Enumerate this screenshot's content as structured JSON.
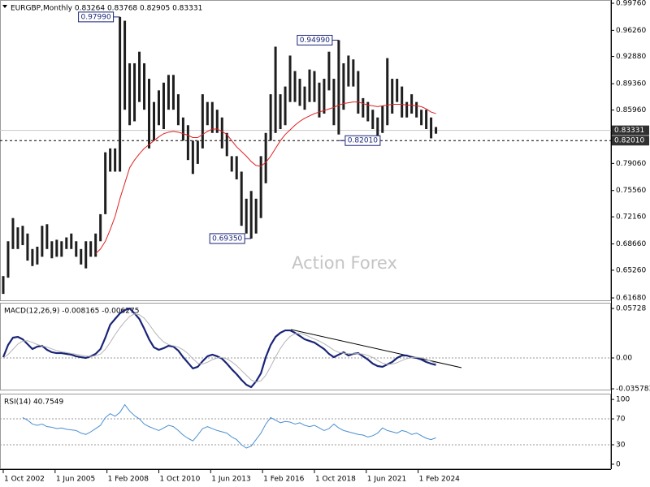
{
  "chart_data": [
    {
      "type": "ohlc",
      "title": "EURGBP,Monthly 0.83264 0.83768 0.82905 0.83331",
      "watermark": "Action Forex",
      "x": [
        "2002-10-01",
        "2003-01-01",
        "2003-04-01",
        "2003-07-01",
        "2003-10-01",
        "2004-01-01",
        "2004-04-01",
        "2004-07-01",
        "2004-10-01",
        "2005-01-01",
        "2005-04-01",
        "2005-07-01",
        "2005-10-01",
        "2006-01-01",
        "2006-04-01",
        "2006-07-01",
        "2006-10-01",
        "2007-01-01",
        "2007-04-01",
        "2007-07-01",
        "2007-10-01",
        "2008-01-01",
        "2008-04-01",
        "2008-07-01",
        "2008-10-01",
        "2009-01-01",
        "2009-04-01",
        "2009-07-01",
        "2009-10-01",
        "2010-01-01",
        "2010-04-01",
        "2010-07-01",
        "2010-10-01",
        "2011-01-01",
        "2011-04-01",
        "2011-07-01",
        "2011-10-01",
        "2012-01-01",
        "2012-04-01",
        "2012-07-01",
        "2012-10-01",
        "2013-01-01",
        "2013-04-01",
        "2013-07-01",
        "2013-10-01",
        "2014-01-01",
        "2014-04-01",
        "2014-07-01",
        "2014-10-01",
        "2015-01-01",
        "2015-04-01",
        "2015-07-01",
        "2015-10-01",
        "2016-01-01",
        "2016-04-01",
        "2016-07-01",
        "2016-10-01",
        "2017-01-01",
        "2017-04-01",
        "2017-07-01",
        "2017-10-01",
        "2018-01-01",
        "2018-04-01",
        "2018-07-01",
        "2018-10-01",
        "2019-01-01",
        "2019-04-01",
        "2019-07-01",
        "2019-10-01",
        "2020-01-01",
        "2020-04-01",
        "2020-07-01",
        "2020-10-01",
        "2021-01-01",
        "2021-04-01",
        "2021-07-01",
        "2021-10-01",
        "2022-01-01",
        "2022-04-01",
        "2022-07-01",
        "2022-10-01",
        "2023-01-01",
        "2023-04-01",
        "2023-07-01",
        "2023-10-01",
        "2024-01-01",
        "2024-04-01",
        "2024-07-01",
        "2024-10-01",
        "2025-01-01"
      ],
      "high": [
        0.645,
        0.69,
        0.72,
        0.708,
        0.71,
        0.7,
        0.68,
        0.683,
        0.71,
        0.712,
        0.69,
        0.692,
        0.69,
        0.695,
        0.7,
        0.69,
        0.68,
        0.69,
        0.69,
        0.7,
        0.725,
        0.805,
        0.81,
        0.81,
        0.9799,
        0.975,
        0.92,
        0.92,
        0.935,
        0.92,
        0.9,
        0.87,
        0.885,
        0.895,
        0.905,
        0.905,
        0.88,
        0.85,
        0.84,
        0.82,
        0.82,
        0.88,
        0.87,
        0.87,
        0.86,
        0.85,
        0.83,
        0.8,
        0.8,
        0.78,
        0.745,
        0.755,
        0.745,
        0.8,
        0.83,
        0.88,
        0.9415,
        0.88,
        0.89,
        0.93,
        0.91,
        0.9,
        0.89,
        0.912,
        0.91,
        0.895,
        0.9,
        0.935,
        0.9,
        0.9499,
        0.92,
        0.93,
        0.925,
        0.91,
        0.875,
        0.87,
        0.86,
        0.85,
        0.865,
        0.9267,
        0.9,
        0.9,
        0.89,
        0.87,
        0.88,
        0.87,
        0.86,
        0.86,
        0.85,
        0.83768
      ],
      "low": [
        0.622,
        0.643,
        0.68,
        0.68,
        0.685,
        0.665,
        0.658,
        0.66,
        0.67,
        0.68,
        0.668,
        0.67,
        0.67,
        0.68,
        0.68,
        0.67,
        0.66,
        0.655,
        0.67,
        0.67,
        0.69,
        0.725,
        0.78,
        0.78,
        0.78,
        0.86,
        0.84,
        0.845,
        0.87,
        0.86,
        0.81,
        0.82,
        0.84,
        0.835,
        0.86,
        0.86,
        0.84,
        0.82,
        0.795,
        0.777,
        0.79,
        0.81,
        0.84,
        0.83,
        0.83,
        0.81,
        0.8,
        0.78,
        0.77,
        0.71,
        0.7,
        0.6935,
        0.7,
        0.72,
        0.765,
        0.82,
        0.83,
        0.835,
        0.84,
        0.87,
        0.87,
        0.865,
        0.86,
        0.87,
        0.87,
        0.85,
        0.855,
        0.885,
        0.84,
        0.828,
        0.86,
        0.89,
        0.89,
        0.855,
        0.85,
        0.845,
        0.835,
        0.8201,
        0.83,
        0.84,
        0.855,
        0.87,
        0.85,
        0.85,
        0.855,
        0.85,
        0.84,
        0.835,
        0.823,
        0.82905
      ],
      "color": "#1e1e1e",
      "series": [
        {
          "color": "#e02020",
          "width": 1,
          "values": [
            null,
            null,
            null,
            null,
            null,
            null,
            null,
            null,
            null,
            null,
            null,
            null,
            null,
            null,
            null,
            null,
            null,
            null,
            null,
            0.674,
            0.68,
            0.69,
            0.705,
            0.722,
            0.745,
            0.765,
            0.785,
            0.795,
            0.803,
            0.81,
            0.815,
            0.82,
            0.825,
            0.829,
            0.831,
            0.832,
            0.831,
            0.829,
            0.827,
            0.824,
            0.824,
            0.828,
            0.832,
            0.835,
            0.835,
            0.832,
            0.828,
            0.82,
            0.812,
            0.806,
            0.8,
            0.793,
            0.788,
            0.787,
            0.792,
            0.8,
            0.81,
            0.82,
            0.828,
            0.834,
            0.84,
            0.845,
            0.849,
            0.852,
            0.855,
            0.857,
            0.859,
            0.861,
            0.863,
            0.866,
            0.868,
            0.869,
            0.87,
            0.87,
            0.868,
            0.866,
            0.865,
            0.864,
            0.865,
            0.866,
            0.867,
            0.867,
            0.867,
            0.866,
            0.866,
            0.865,
            0.864,
            0.861,
            0.857,
            0.855
          ]
        }
      ],
      "xlim": [
        "2002-08-01",
        "2034-01-01"
      ],
      "ylim": [
        0.6137,
        1.0018
      ],
      "yticks": [
        {
          "value": 0.9976,
          "label": "0.99760"
        },
        {
          "value": 0.9626,
          "label": "0.96260"
        },
        {
          "value": 0.9288,
          "label": "0.92880"
        },
        {
          "value": 0.8936,
          "label": "0.89360"
        },
        {
          "value": 0.8596,
          "label": "0.85960"
        },
        {
          "value": 0.7906,
          "label": "0.79060"
        },
        {
          "value": 0.7556,
          "label": "0.75560"
        },
        {
          "value": 0.7216,
          "label": "0.72160"
        },
        {
          "value": 0.6866,
          "label": "0.68660"
        },
        {
          "value": 0.6526,
          "label": "0.65260"
        },
        {
          "value": 0.6168,
          "label": "0.61680"
        }
      ],
      "hlines": [
        {
          "value": 0.83331,
          "color": "#c8c8c8",
          "style": "solid"
        },
        {
          "value": 0.8201,
          "label": "0.82010",
          "color": "#000000",
          "style": "dashed"
        }
      ],
      "annotations": [
        {
          "x": "2008-10-01",
          "value": 0.9799,
          "label": "0.97990",
          "side": "left"
        },
        {
          "x": "2020-01-01",
          "value": 0.9499,
          "label": "0.94990",
          "side": "left"
        },
        {
          "x": "2015-07-01",
          "value": 0.6935,
          "label": "0.69350",
          "side": "left"
        },
        {
          "x": "2020-01-01",
          "value": 0.8201,
          "label": "0.82010",
          "side": "right"
        }
      ]
    },
    {
      "type": "line",
      "title": "MACD(12,26,9) -0.008165 -0.006275",
      "series": [
        {
          "color": "#1a2478",
          "width": 2.2,
          "values": [
            0.0009,
            0.015,
            0.0235,
            0.0244,
            0.0216,
            0.016,
            0.0103,
            0.0131,
            0.0141,
            0.0094,
            0.0066,
            0.0056,
            0.0056,
            0.0047,
            0.0038,
            0.0019,
            0.0009,
            0,
            0.0019,
            0.0047,
            0.0103,
            0.0235,
            0.0385,
            0.0451,
            0.0516,
            0.0554,
            0.0573,
            0.0516,
            0.0451,
            0.0338,
            0.0216,
            0.0122,
            0.0094,
            0.0113,
            0.0141,
            0.0131,
            0.0085,
            0.0009,
            -0.0056,
            -0.0122,
            -0.0103,
            -0.0038,
            0.0019,
            0.0038,
            0.0019,
            -0.0009,
            -0.0066,
            -0.0131,
            -0.0188,
            -0.0254,
            -0.031,
            -0.0338,
            -0.0272,
            -0.0178,
            0.0009,
            0.015,
            0.0244,
            0.0291,
            0.0319,
            0.0319,
            0.0291,
            0.0254,
            0.0216,
            0.0197,
            0.0178,
            0.0141,
            0.0103,
            0.0047,
            0.0009,
            0.0038,
            0.0066,
            0.0028,
            0.0047,
            0.0056,
            0.0019,
            -0.0019,
            -0.0066,
            -0.0094,
            -0.0103,
            -0.0075,
            -0.0047,
            0,
            0.0028,
            0.0028,
            0.0009,
            0,
            -0.0019,
            -0.0047,
            -0.0066,
            -0.008165
          ]
        },
        {
          "color": "#b4b4b4",
          "width": 1,
          "values": [
            0,
            0.004,
            0.01,
            0.016,
            0.0195,
            0.02,
            0.018,
            0.0155,
            0.014,
            0.0125,
            0.0105,
            0.0085,
            0.0072,
            0.0062,
            0.0052,
            0.0042,
            0.0032,
            0.0022,
            0.0018,
            0.0025,
            0.0045,
            0.01,
            0.018,
            0.027,
            0.035,
            0.042,
            0.048,
            0.051,
            0.05,
            0.046,
            0.039,
            0.031,
            0.024,
            0.0185,
            0.0155,
            0.014,
            0.0125,
            0.0095,
            0.005,
            -0.001,
            -0.006,
            -0.007,
            -0.005,
            -0.002,
            0,
            0.0005,
            -0.001,
            -0.0045,
            -0.009,
            -0.0145,
            -0.02,
            -0.0255,
            -0.028,
            -0.0265,
            -0.02,
            -0.01,
            0.001,
            0.011,
            0.019,
            0.025,
            0.028,
            0.0285,
            0.027,
            0.0245,
            0.022,
            0.0195,
            0.0165,
            0.013,
            0.009,
            0.0065,
            0.0055,
            0.005,
            0.0048,
            0.005,
            0.0045,
            0.003,
            0.0005,
            -0.003,
            -0.006,
            -0.0075,
            -0.0072,
            -0.0055,
            -0.003,
            -0.0008,
            0.0005,
            0.0008,
            0.0002,
            -0.0015,
            -0.004,
            -0.006275
          ]
        }
      ],
      "xlim": [
        "2002-08-01",
        "2034-01-01"
      ],
      "ylim": [
        -0.0376,
        0.0639
      ],
      "yticks": [
        0.05728,
        {
          "value": 0,
          "label": "0.00"
        },
        -0.035783
      ],
      "levels": [
        0
      ]
    },
    {
      "type": "line",
      "title": "RSI(14) 40.7549",
      "series": [
        {
          "color": "#4a8fd0",
          "width": 1,
          "values": [
            null,
            null,
            null,
            null,
            72,
            68,
            62,
            60,
            62,
            58,
            57,
            55,
            56,
            54,
            53,
            52,
            48,
            46,
            50,
            55,
            60,
            72,
            78,
            74,
            80,
            92,
            82,
            75,
            70,
            62,
            58,
            55,
            52,
            56,
            60,
            58,
            52,
            45,
            40,
            36,
            45,
            55,
            58,
            55,
            52,
            50,
            48,
            42,
            38,
            30,
            25,
            28,
            38,
            48,
            62,
            72,
            68,
            64,
            66,
            65,
            62,
            64,
            60,
            58,
            60,
            56,
            52,
            55,
            62,
            56,
            52,
            50,
            48,
            46,
            45,
            42,
            44,
            48,
            56,
            52,
            50,
            48,
            52,
            50,
            46,
            48,
            44,
            40,
            38,
            40.7549
          ]
        }
      ],
      "xlim": [
        "2002-08-01",
        "2034-01-01"
      ],
      "ylim": [
        -7.6,
        108.9
      ],
      "yticks": [
        100,
        70,
        30,
        0
      ],
      "levels": [
        70,
        30
      ],
      "xticks": [
        {
          "value": "2002-10-01",
          "label": "1 Oct 2002"
        },
        {
          "value": "2005-06-01",
          "label": "1 Jun 2005"
        },
        {
          "value": "2008-02-01",
          "label": "1 Feb 2008"
        },
        {
          "value": "2010-10-01",
          "label": "1 Oct 2010"
        },
        {
          "value": "2013-06-01",
          "label": "1 Jun 2013"
        },
        {
          "value": "2016-02-01",
          "label": "1 Feb 2016"
        },
        {
          "value": "2018-10-01",
          "label": "1 Oct 2018"
        },
        {
          "value": "2021-06-01",
          "label": "1 Jun 2021"
        },
        {
          "value": "2024-02-01",
          "label": "1 Feb 2024"
        }
      ]
    }
  ]
}
